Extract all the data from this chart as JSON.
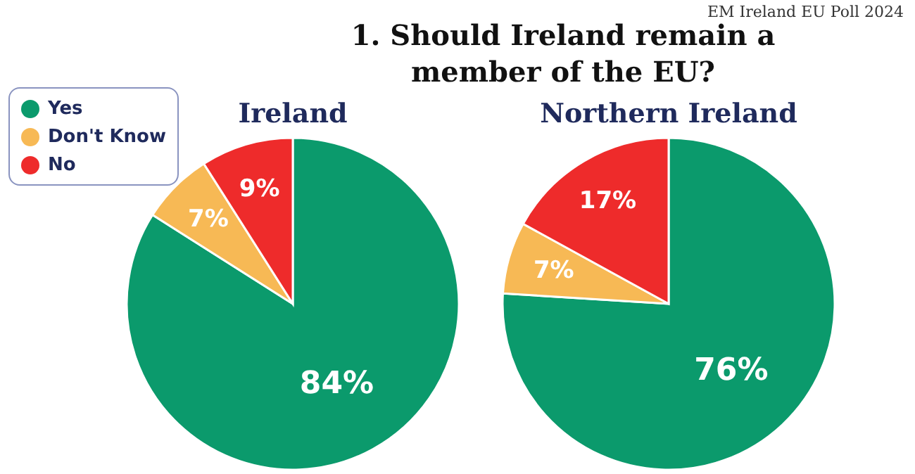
{
  "chart_data": [
    {
      "type": "pie",
      "title": "1.  Should Ireland remain a member of the EU?",
      "subtitle": "Ireland",
      "annotations": [
        "EM Ireland EU Poll 2024"
      ],
      "categories": [
        "Yes",
        "Don't Know",
        "No"
      ],
      "values": [
        84,
        7,
        9
      ],
      "colors": [
        "#0b9a6c",
        "#f7b955",
        "#ee2b2b"
      ],
      "value_labels": [
        "84%",
        "7%",
        "9%"
      ],
      "legend": "top left"
    },
    {
      "type": "pie",
      "title": "Northern Ireland",
      "categories": [
        null,
        null,
        null
      ],
      "values": [
        76,
        7,
        17
      ],
      "colors": [
        "#0b9a6c",
        "#f7b955",
        "#ee2b2b"
      ],
      "value_labels": [
        "76%",
        "7%",
        "17%"
      ]
    }
  ]
}
